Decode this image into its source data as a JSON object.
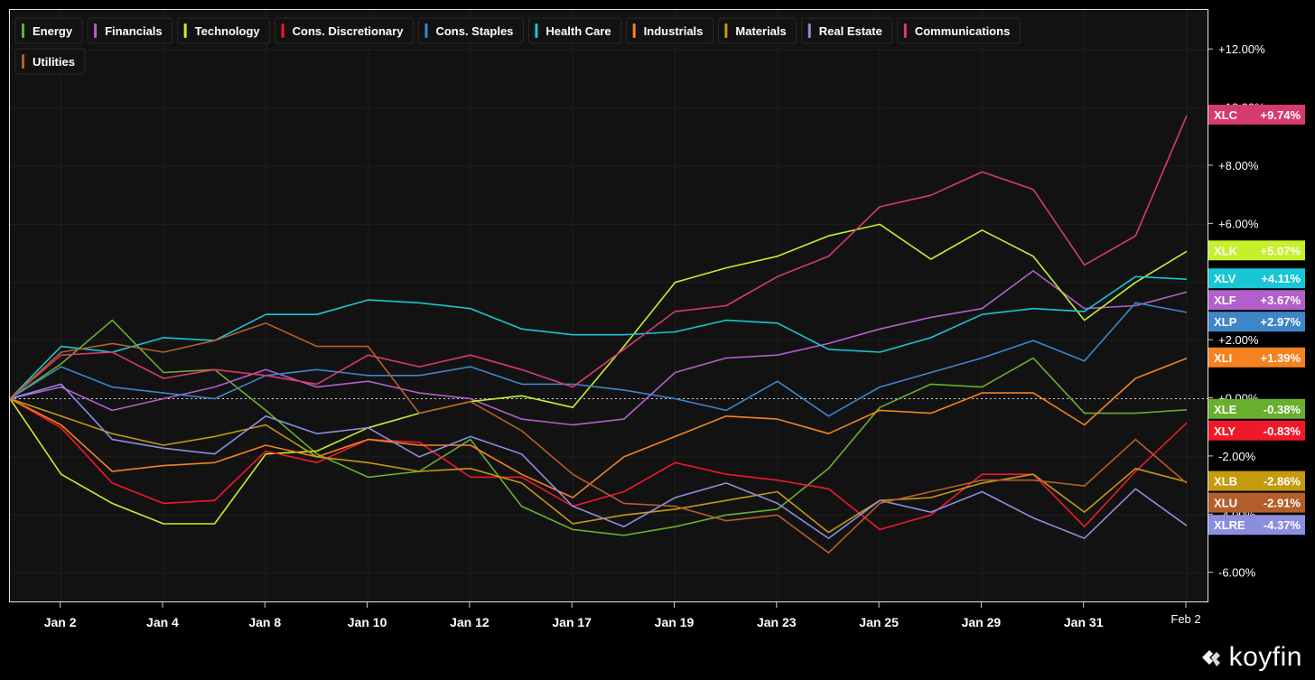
{
  "chart_data": {
    "type": "line",
    "title": "",
    "xlabel": "",
    "ylabel": "",
    "ylim": [
      -6.6,
      13
    ],
    "y_ticks": [
      {
        "value": 12,
        "label": "+12.00%"
      },
      {
        "value": 10,
        "label": "+10.00%"
      },
      {
        "value": 8,
        "label": "+8.00%"
      },
      {
        "value": 6,
        "label": "+6.00%"
      },
      {
        "value": 4,
        "label": "+4.00%"
      },
      {
        "value": 2,
        "label": "+2.00%"
      },
      {
        "value": 0,
        "label": "+0.00%"
      },
      {
        "value": -2,
        "label": "-2.00%"
      },
      {
        "value": -4,
        "label": "-4.00%"
      },
      {
        "value": -6,
        "label": "-6.00%"
      }
    ],
    "x_ticks": [
      {
        "index": 1,
        "label": "Jan 2"
      },
      {
        "index": 3,
        "label": "Jan 4"
      },
      {
        "index": 5,
        "label": "Jan 8"
      },
      {
        "index": 7,
        "label": "Jan 10"
      },
      {
        "index": 9,
        "label": "Jan 12"
      },
      {
        "index": 11,
        "label": "Jan 17"
      },
      {
        "index": 13,
        "label": "Jan 19"
      },
      {
        "index": 15,
        "label": "Jan 23"
      },
      {
        "index": 17,
        "label": "Jan 25"
      },
      {
        "index": 19,
        "label": "Jan 29"
      },
      {
        "index": 21,
        "label": "Jan 31"
      },
      {
        "index": 23,
        "label": "Feb 2"
      }
    ],
    "zero_line": true,
    "grid": true,
    "legend_position": "top-left",
    "series": [
      {
        "name": "Energy",
        "ticker": "XLE",
        "last_label": "-0.38%",
        "color": "#6aae2e",
        "values": [
          0,
          1.2,
          2.7,
          0.9,
          1.0,
          -0.4,
          -1.9,
          -2.7,
          -2.5,
          -1.4,
          -3.7,
          -4.5,
          -4.7,
          -4.4,
          -4.0,
          -3.8,
          -2.4,
          -0.3,
          0.5,
          0.4,
          1.4,
          -0.5,
          -0.5,
          -0.38
        ]
      },
      {
        "name": "Financials",
        "ticker": "XLF",
        "last_label": "+3.67%",
        "color": "#b25fc9",
        "values": [
          0,
          0.4,
          -0.4,
          0,
          0.4,
          1.0,
          0.4,
          0.6,
          0.2,
          0,
          -0.7,
          -0.9,
          -0.7,
          0.9,
          1.4,
          1.5,
          1.9,
          2.4,
          2.8,
          3.1,
          4.4,
          3.1,
          3.2,
          3.67
        ]
      },
      {
        "name": "Technology",
        "ticker": "XLK",
        "last_label": "+5.07%",
        "color": "#c6ef2c",
        "values": [
          0,
          -2.6,
          -3.6,
          -4.3,
          -4.3,
          -1.9,
          -1.8,
          -1.0,
          -0.5,
          -0.1,
          0.1,
          -0.3,
          1.8,
          4.0,
          4.5,
          4.9,
          5.6,
          6.0,
          4.8,
          5.8,
          4.9,
          2.7,
          4.0,
          5.07
        ]
      },
      {
        "name": "Cons. Discretionary",
        "ticker": "XLY",
        "last_label": "-0.83%",
        "color": "#f0192a",
        "values": [
          0,
          -1.0,
          -2.9,
          -3.6,
          -3.5,
          -1.8,
          -2.2,
          -1.4,
          -1.5,
          -2.7,
          -2.7,
          -3.7,
          -3.2,
          -2.2,
          -2.6,
          -2.8,
          -3.1,
          -4.5,
          -4.0,
          -2.6,
          -2.6,
          -4.4,
          -2.5,
          -0.83
        ]
      },
      {
        "name": "Cons. Staples",
        "ticker": "XLP",
        "last_label": "+2.97%",
        "color": "#3e86c8",
        "values": [
          0,
          1.1,
          0.4,
          0.2,
          0,
          0.8,
          1.0,
          0.8,
          0.8,
          1.1,
          0.5,
          0.5,
          0.3,
          0,
          -0.4,
          0.6,
          -0.6,
          0.4,
          0.9,
          1.4,
          2.0,
          1.3,
          3.3,
          2.97
        ]
      },
      {
        "name": "Health Care",
        "ticker": "XLV",
        "last_label": "+4.11%",
        "color": "#17c7d6",
        "values": [
          0,
          1.8,
          1.6,
          2.1,
          2.0,
          2.9,
          2.9,
          3.4,
          3.3,
          3.1,
          2.4,
          2.2,
          2.2,
          2.3,
          2.7,
          2.6,
          1.7,
          1.6,
          2.1,
          2.9,
          3.1,
          3.0,
          4.2,
          4.11
        ]
      },
      {
        "name": "Industrials",
        "ticker": "XLI",
        "last_label": "+1.39%",
        "color": "#f5821f",
        "values": [
          0,
          -0.9,
          -2.5,
          -2.3,
          -2.2,
          -1.6,
          -2.0,
          -1.4,
          -1.6,
          -1.6,
          -2.6,
          -3.4,
          -2.0,
          -1.3,
          -0.6,
          -0.7,
          -1.2,
          -0.4,
          -0.5,
          0.2,
          0.2,
          -0.9,
          0.7,
          1.39
        ]
      },
      {
        "name": "Materials",
        "ticker": "XLB",
        "last_label": "-2.86%",
        "color": "#c49a0e",
        "values": [
          0,
          -0.6,
          -1.2,
          -1.6,
          -1.3,
          -0.9,
          -2.0,
          -2.2,
          -2.5,
          -2.4,
          -2.9,
          -4.3,
          -4.0,
          -3.8,
          -3.5,
          -3.2,
          -4.6,
          -3.5,
          -3.4,
          -2.9,
          -2.6,
          -3.9,
          -2.4,
          -2.86
        ]
      },
      {
        "name": "Real Estate",
        "ticker": "XLRE",
        "last_label": "-4.37%",
        "color": "#8b8ede",
        "values": [
          0,
          0.5,
          -1.4,
          -1.7,
          -1.9,
          -0.6,
          -1.2,
          -1.0,
          -2.0,
          -1.3,
          -1.9,
          -3.7,
          -4.4,
          -3.4,
          -2.9,
          -3.6,
          -4.8,
          -3.5,
          -3.9,
          -3.2,
          -4.1,
          -4.8,
          -3.1,
          -4.37
        ]
      },
      {
        "name": "Communications",
        "ticker": "XLC",
        "last_label": "+9.74%",
        "color": "#d73a70",
        "values": [
          0,
          1.5,
          1.6,
          0.7,
          1.0,
          0.8,
          0.5,
          1.5,
          1.1,
          1.5,
          1.0,
          0.4,
          1.7,
          3.0,
          3.2,
          4.2,
          4.9,
          6.6,
          7.0,
          7.8,
          7.2,
          4.6,
          5.6,
          9.74
        ]
      },
      {
        "name": "Utilities",
        "ticker": "XLU",
        "last_label": "-2.91%",
        "color": "#b35f2b",
        "values": [
          0,
          1.6,
          1.9,
          1.6,
          2.0,
          2.6,
          1.8,
          1.8,
          -0.5,
          -0.1,
          -1.1,
          -2.6,
          -3.6,
          -3.7,
          -4.2,
          -4.0,
          -5.3,
          -3.6,
          -3.2,
          -2.8,
          -2.8,
          -3.0,
          -1.4,
          -2.91
        ]
      }
    ]
  },
  "brand": {
    "name": "koyfin"
  }
}
